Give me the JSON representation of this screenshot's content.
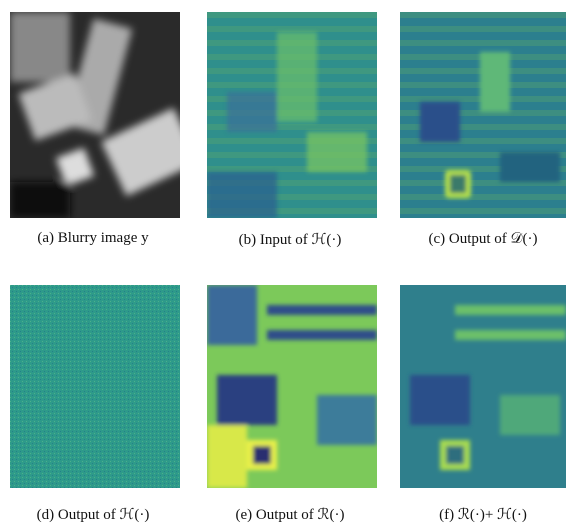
{
  "panels": [
    {
      "caption": "(a) Blurry image y"
    },
    {
      "caption": "(b) Input of ℋ(·)"
    },
    {
      "caption": "(c) Output of 𝒟(·)"
    },
    {
      "caption": "(d) Output of ℋ(·)"
    },
    {
      "caption": "(e) Output of ℛ(·)"
    },
    {
      "caption": "(f) ℛ(·)+ ℋ(·)"
    }
  ]
}
